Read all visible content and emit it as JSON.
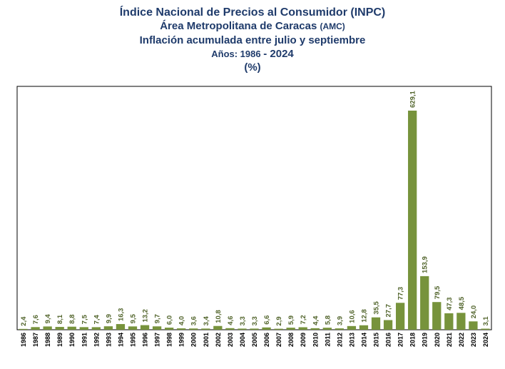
{
  "title": {
    "line1": "Índice Nacional de Precios al Consumidor (INPC)",
    "line2_main": "Área Metropolitana de Caracas ",
    "line2_small": "(AMC)",
    "line3": "Inflación acumulada entre julio y septiembre",
    "line4_prefix": "Años: 1986 ",
    "line4_suffix": "- 2024",
    "line5": "(%)"
  },
  "chart_data": {
    "type": "bar",
    "categories": [
      "1986",
      "1987",
      "1988",
      "1989",
      "1990",
      "1991",
      "1992",
      "1993",
      "1994",
      "1995",
      "1996",
      "1997",
      "1998",
      "1999",
      "2000",
      "2001",
      "2002",
      "2003",
      "2004",
      "2005",
      "2006",
      "2007",
      "2008",
      "2009",
      "2010",
      "2011",
      "2012",
      "2013",
      "2014",
      "2015",
      "2016",
      "2017",
      "2018",
      "2019",
      "2020",
      "2021",
      "2022",
      "2023",
      "2024"
    ],
    "values": [
      2.4,
      7.6,
      9.4,
      8.1,
      8.8,
      7.5,
      7.4,
      9.9,
      16.3,
      9.5,
      13.2,
      9.7,
      6.0,
      4.0,
      3.6,
      3.4,
      10.8,
      4.6,
      3.3,
      3.3,
      6.6,
      2.9,
      5.9,
      7.2,
      4.4,
      5.8,
      3.9,
      10.6,
      12.8,
      35.5,
      27.7,
      77.3,
      629.1,
      153.9,
      79.5,
      47.3,
      48.5,
      24.0,
      3.1
    ],
    "labels": [
      "2,4",
      "7,6",
      "9,4",
      "8,1",
      "8,8",
      "7,5",
      "7,4",
      "9,9",
      "16,3",
      "9,5",
      "13,2",
      "9,7",
      "6,0",
      "4,0",
      "3,6",
      "3,4",
      "10,8",
      "4,6",
      "3,3",
      "3,3",
      "6,6",
      "2,9",
      "5,9",
      "7,2",
      "4,4",
      "5,8",
      "3,9",
      "10,6",
      "12,8",
      "35,5",
      "27,7",
      "77,3",
      "629,1",
      "153,9",
      "79,5",
      "47,3",
      "48,5",
      "24,0",
      "3,1"
    ],
    "ylim": [
      0,
      700
    ],
    "bar_color": "#77933c",
    "label_color": "#4f6228",
    "grid": false
  }
}
